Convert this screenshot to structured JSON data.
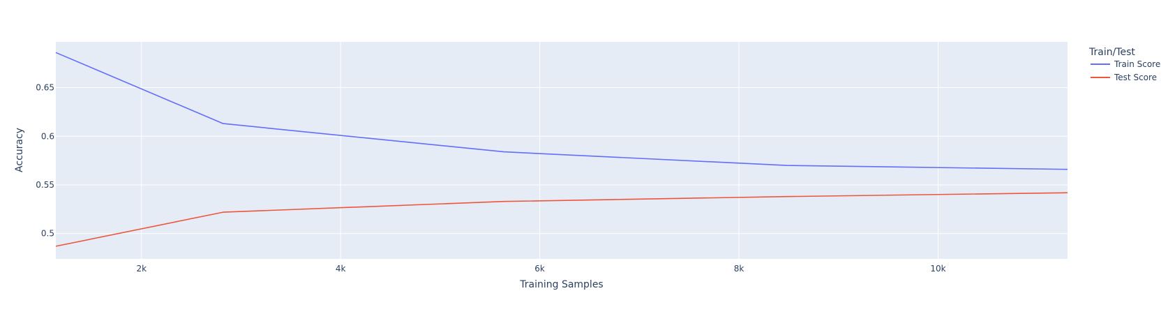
{
  "chart_data": {
    "type": "line",
    "xlabel": "Training Samples",
    "ylabel": "Accuracy",
    "xlim": [
      1140,
      11300
    ],
    "ylim": [
      0.474,
      0.697
    ],
    "x_ticks": [
      2000,
      4000,
      6000,
      8000,
      10000
    ],
    "x_tick_labels": [
      "2k",
      "4k",
      "6k",
      "8k",
      "10k"
    ],
    "y_ticks": [
      0.5,
      0.55,
      0.6,
      0.65
    ],
    "y_tick_labels": [
      "0.5",
      "0.55",
      "0.6",
      "0.65"
    ],
    "grid": true,
    "plot_background": "#e5ecf6",
    "legend": {
      "title": "Train/Test",
      "placement": "right"
    },
    "x": [
      1140,
      2820,
      5640,
      8480,
      11300
    ],
    "series": [
      {
        "name": "Train Score",
        "color": "#636efa",
        "values": [
          0.686,
          0.613,
          0.584,
          0.57,
          0.566
        ]
      },
      {
        "name": "Test Score",
        "color": "#ef553b",
        "values": [
          0.487,
          0.522,
          0.533,
          0.538,
          0.542
        ]
      }
    ]
  }
}
